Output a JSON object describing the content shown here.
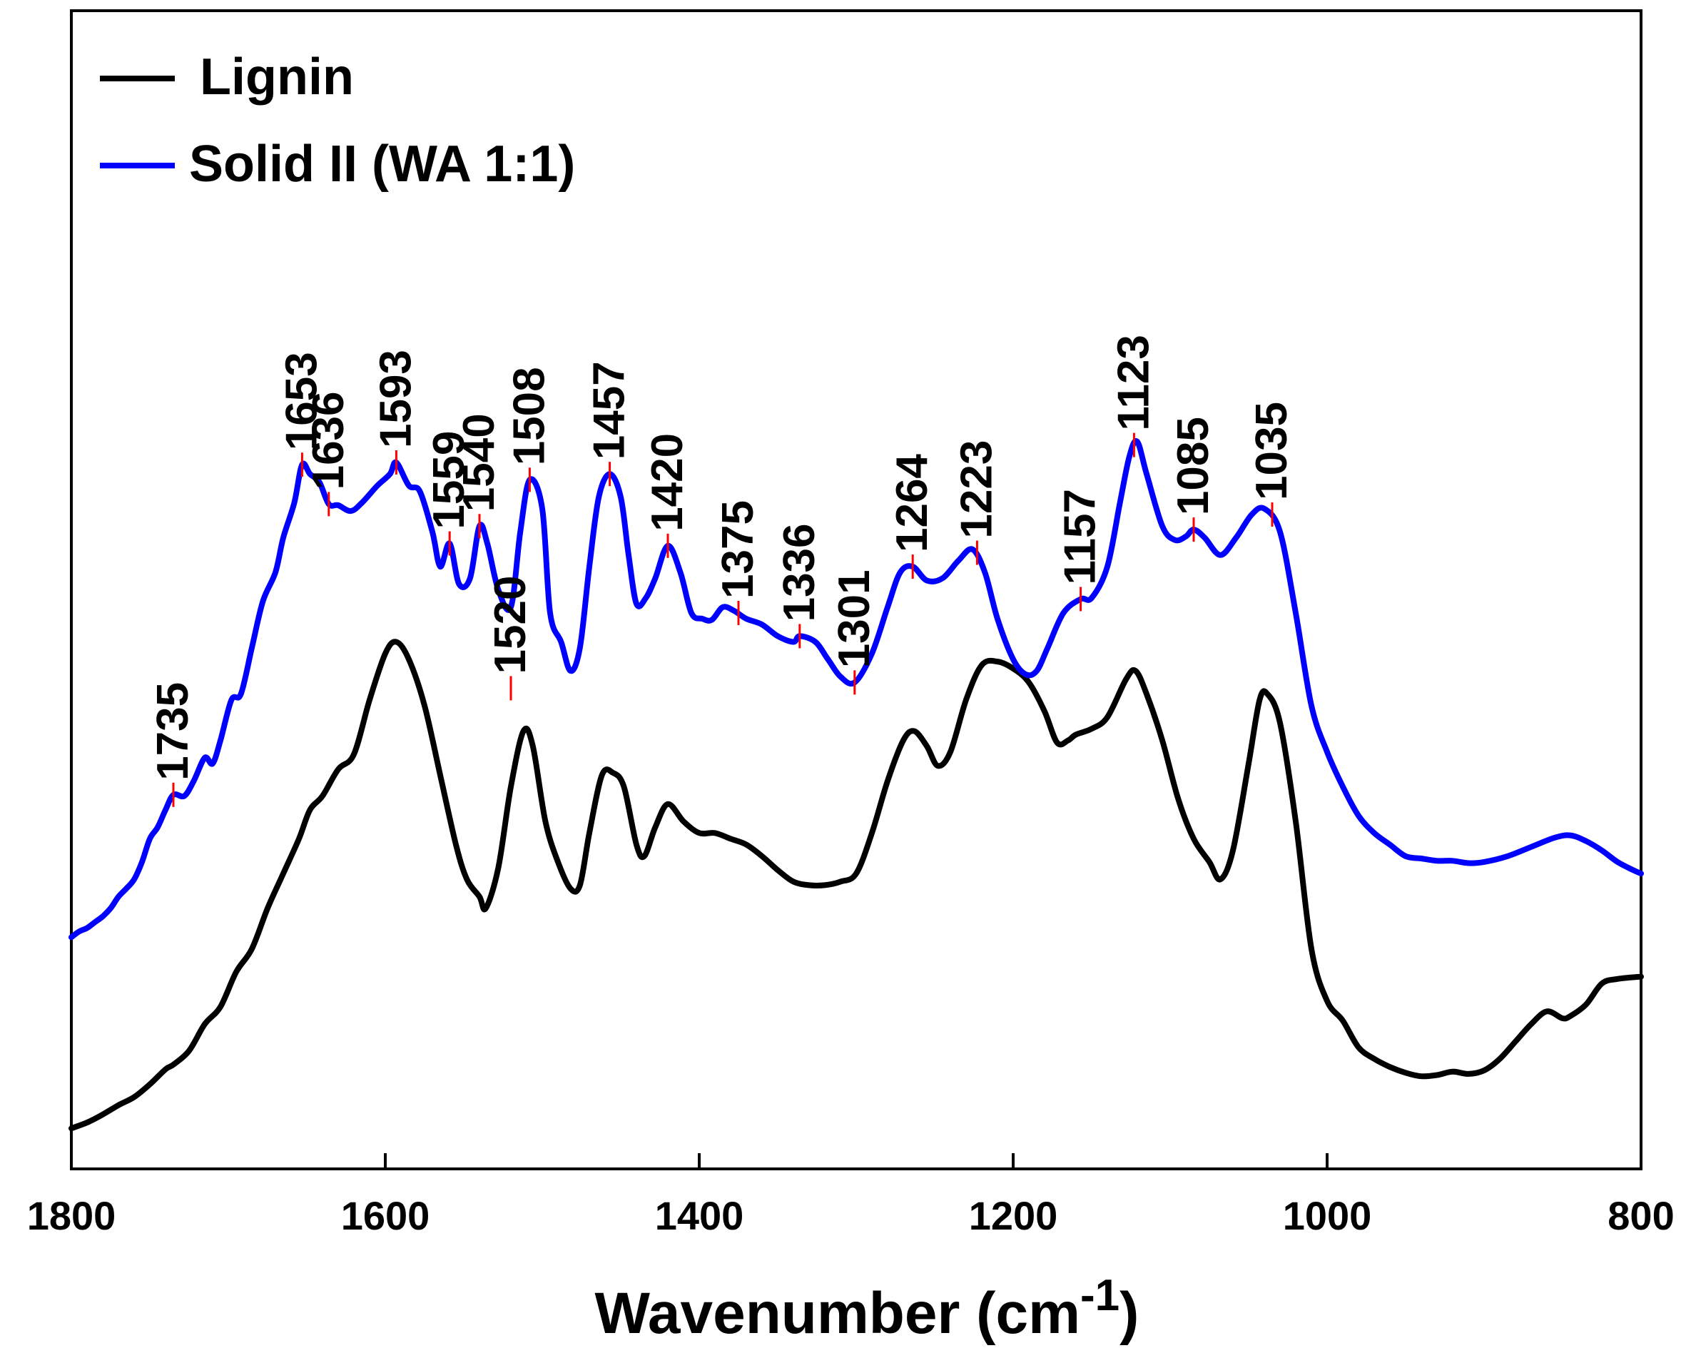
{
  "chart_data": {
    "type": "line",
    "title": "",
    "xlabel": "Wavenumber (cm",
    "xlabel_superscript": "-1",
    "xlabel_close": ")",
    "ylabel": "",
    "xlim": [
      1800,
      800
    ],
    "ylim": [
      0,
      100
    ],
    "x_ticks": [
      1800,
      1600,
      1400,
      1200,
      1000,
      800
    ],
    "x_tick_labels": [
      "1800",
      "1600",
      "1400",
      "1200",
      "1000",
      "800"
    ],
    "legend": {
      "position": "top-left"
    },
    "series": [
      {
        "name": "Lignin",
        "color": "#000000",
        "points": [
          [
            1800,
            3.5
          ],
          [
            1790,
            4.0
          ],
          [
            1780,
            4.7
          ],
          [
            1770,
            5.5
          ],
          [
            1760,
            6.2
          ],
          [
            1750,
            7.3
          ],
          [
            1740,
            8.6
          ],
          [
            1735,
            9.0
          ],
          [
            1725,
            10.2
          ],
          [
            1715,
            12.5
          ],
          [
            1705,
            14.0
          ],
          [
            1695,
            17.0
          ],
          [
            1685,
            19.0
          ],
          [
            1675,
            22.5
          ],
          [
            1665,
            25.5
          ],
          [
            1655,
            28.5
          ],
          [
            1648,
            31.0
          ],
          [
            1640,
            32.2
          ],
          [
            1630,
            34.5
          ],
          [
            1620,
            35.8
          ],
          [
            1610,
            40.5
          ],
          [
            1600,
            44.5
          ],
          [
            1593,
            45.5
          ],
          [
            1585,
            44.0
          ],
          [
            1575,
            40.0
          ],
          [
            1565,
            34.0
          ],
          [
            1555,
            28.0
          ],
          [
            1548,
            25.0
          ],
          [
            1540,
            23.5
          ],
          [
            1536,
            22.5
          ],
          [
            1528,
            26.0
          ],
          [
            1520,
            33.0
          ],
          [
            1512,
            37.8
          ],
          [
            1506,
            36.5
          ],
          [
            1498,
            30.0
          ],
          [
            1490,
            26.5
          ],
          [
            1482,
            24.2
          ],
          [
            1476,
            24.5
          ],
          [
            1470,
            29.0
          ],
          [
            1462,
            34.0
          ],
          [
            1455,
            34.2
          ],
          [
            1448,
            33.0
          ],
          [
            1440,
            28.0
          ],
          [
            1435,
            27.0
          ],
          [
            1428,
            29.5
          ],
          [
            1420,
            31.5
          ],
          [
            1410,
            30.0
          ],
          [
            1400,
            29.0
          ],
          [
            1390,
            29.0
          ],
          [
            1380,
            28.5
          ],
          [
            1370,
            28.0
          ],
          [
            1360,
            27.0
          ],
          [
            1350,
            25.8
          ],
          [
            1340,
            24.8
          ],
          [
            1330,
            24.5
          ],
          [
            1320,
            24.5
          ],
          [
            1310,
            24.8
          ],
          [
            1300,
            25.5
          ],
          [
            1290,
            29.0
          ],
          [
            1280,
            33.5
          ],
          [
            1270,
            37.0
          ],
          [
            1263,
            37.8
          ],
          [
            1255,
            36.5
          ],
          [
            1248,
            34.8
          ],
          [
            1240,
            36.0
          ],
          [
            1230,
            40.5
          ],
          [
            1220,
            43.5
          ],
          [
            1210,
            43.8
          ],
          [
            1200,
            43.2
          ],
          [
            1190,
            42.0
          ],
          [
            1180,
            39.5
          ],
          [
            1172,
            36.8
          ],
          [
            1165,
            37.0
          ],
          [
            1160,
            37.5
          ],
          [
            1150,
            38.0
          ],
          [
            1140,
            39.0
          ],
          [
            1128,
            42.3
          ],
          [
            1122,
            43.0
          ],
          [
            1115,
            41.0
          ],
          [
            1105,
            37.0
          ],
          [
            1095,
            32.0
          ],
          [
            1085,
            28.5
          ],
          [
            1075,
            26.5
          ],
          [
            1068,
            25.0
          ],
          [
            1060,
            27.5
          ],
          [
            1050,
            35.0
          ],
          [
            1043,
            40.5
          ],
          [
            1038,
            41.0
          ],
          [
            1030,
            38.5
          ],
          [
            1020,
            30.0
          ],
          [
            1010,
            19.0
          ],
          [
            1000,
            14.5
          ],
          [
            990,
            12.8
          ],
          [
            980,
            10.5
          ],
          [
            970,
            9.5
          ],
          [
            960,
            8.8
          ],
          [
            950,
            8.3
          ],
          [
            940,
            8.0
          ],
          [
            930,
            8.1
          ],
          [
            920,
            8.4
          ],
          [
            910,
            8.2
          ],
          [
            900,
            8.5
          ],
          [
            890,
            9.5
          ],
          [
            880,
            11.0
          ],
          [
            870,
            12.5
          ],
          [
            860,
            13.6
          ],
          [
            850,
            13.0
          ],
          [
            845,
            13.2
          ],
          [
            835,
            14.2
          ],
          [
            825,
            16.0
          ],
          [
            815,
            16.4
          ],
          [
            800,
            16.6
          ]
        ]
      },
      {
        "name": "Solid II (WA 1:1)",
        "color": "#0000ff",
        "points": [
          [
            1800,
            20.0
          ],
          [
            1795,
            20.5
          ],
          [
            1790,
            20.8
          ],
          [
            1785,
            21.3
          ],
          [
            1780,
            21.8
          ],
          [
            1775,
            22.5
          ],
          [
            1770,
            23.5
          ],
          [
            1765,
            24.2
          ],
          [
            1760,
            25.0
          ],
          [
            1755,
            26.5
          ],
          [
            1750,
            28.5
          ],
          [
            1745,
            29.5
          ],
          [
            1740,
            31.0
          ],
          [
            1735,
            32.3
          ],
          [
            1728,
            32.2
          ],
          [
            1722,
            33.5
          ],
          [
            1715,
            35.5
          ],
          [
            1710,
            35.0
          ],
          [
            1705,
            37.0
          ],
          [
            1698,
            40.5
          ],
          [
            1692,
            41.0
          ],
          [
            1685,
            45.0
          ],
          [
            1678,
            49.0
          ],
          [
            1670,
            51.5
          ],
          [
            1665,
            54.5
          ],
          [
            1658,
            57.5
          ],
          [
            1653,
            60.8
          ],
          [
            1648,
            60.0
          ],
          [
            1642,
            59.3
          ],
          [
            1636,
            57.4
          ],
          [
            1630,
            57.3
          ],
          [
            1622,
            56.8
          ],
          [
            1615,
            57.5
          ],
          [
            1605,
            59.0
          ],
          [
            1597,
            60.0
          ],
          [
            1593,
            61.0
          ],
          [
            1585,
            59.0
          ],
          [
            1578,
            58.5
          ],
          [
            1570,
            55.0
          ],
          [
            1565,
            52.0
          ],
          [
            1559,
            54.0
          ],
          [
            1553,
            50.5
          ],
          [
            1546,
            51.0
          ],
          [
            1540,
            55.5
          ],
          [
            1535,
            54.0
          ],
          [
            1528,
            50.0
          ],
          [
            1520,
            48.5
          ],
          [
            1514,
            55.0
          ],
          [
            1508,
            59.5
          ],
          [
            1500,
            57.0
          ],
          [
            1495,
            48.0
          ],
          [
            1488,
            45.5
          ],
          [
            1482,
            43.0
          ],
          [
            1476,
            45.0
          ],
          [
            1470,
            52.0
          ],
          [
            1464,
            58.0
          ],
          [
            1457,
            60.0
          ],
          [
            1450,
            58.0
          ],
          [
            1445,
            53.0
          ],
          [
            1440,
            48.8
          ],
          [
            1434,
            49.3
          ],
          [
            1428,
            51.0
          ],
          [
            1420,
            53.8
          ],
          [
            1412,
            51.5
          ],
          [
            1405,
            48.0
          ],
          [
            1398,
            47.5
          ],
          [
            1392,
            47.4
          ],
          [
            1385,
            48.5
          ],
          [
            1378,
            48.2
          ],
          [
            1370,
            47.5
          ],
          [
            1360,
            47.0
          ],
          [
            1350,
            46.0
          ],
          [
            1340,
            45.5
          ],
          [
            1336,
            46.0
          ],
          [
            1326,
            45.5
          ],
          [
            1318,
            44.0
          ],
          [
            1310,
            42.5
          ],
          [
            1301,
            42.0
          ],
          [
            1290,
            44.5
          ],
          [
            1280,
            48.5
          ],
          [
            1272,
            51.5
          ],
          [
            1264,
            52.0
          ],
          [
            1255,
            50.8
          ],
          [
            1245,
            51.0
          ],
          [
            1235,
            52.5
          ],
          [
            1226,
            53.5
          ],
          [
            1218,
            51.5
          ],
          [
            1210,
            47.5
          ],
          [
            1200,
            44.0
          ],
          [
            1192,
            42.7
          ],
          [
            1185,
            43.0
          ],
          [
            1178,
            45.0
          ],
          [
            1168,
            48.0
          ],
          [
            1157,
            49.2
          ],
          [
            1150,
            49.3
          ],
          [
            1140,
            52.0
          ],
          [
            1132,
            57.5
          ],
          [
            1126,
            61.5
          ],
          [
            1121,
            62.8
          ],
          [
            1115,
            60.0
          ],
          [
            1105,
            55.5
          ],
          [
            1097,
            54.3
          ],
          [
            1090,
            54.6
          ],
          [
            1085,
            55.2
          ],
          [
            1078,
            54.5
          ],
          [
            1068,
            53.0
          ],
          [
            1058,
            54.5
          ],
          [
            1048,
            56.5
          ],
          [
            1040,
            57.0
          ],
          [
            1030,
            55.0
          ],
          [
            1020,
            48.0
          ],
          [
            1010,
            40.0
          ],
          [
            1000,
            36.0
          ],
          [
            990,
            33.0
          ],
          [
            980,
            30.5
          ],
          [
            970,
            29.0
          ],
          [
            960,
            28.0
          ],
          [
            950,
            27.0
          ],
          [
            940,
            26.8
          ],
          [
            930,
            26.6
          ],
          [
            920,
            26.6
          ],
          [
            910,
            26.4
          ],
          [
            900,
            26.5
          ],
          [
            885,
            27.0
          ],
          [
            870,
            27.8
          ],
          [
            855,
            28.6
          ],
          [
            845,
            28.8
          ],
          [
            835,
            28.3
          ],
          [
            825,
            27.5
          ],
          [
            815,
            26.5
          ],
          [
            805,
            25.8
          ],
          [
            800,
            25.5
          ]
        ]
      }
    ],
    "annotations": [
      {
        "label": "1653",
        "x": 1653,
        "y": 60.8
      },
      {
        "label": "1636",
        "x": 1636,
        "y": 57.4
      },
      {
        "label": "1593",
        "x": 1593,
        "y": 61.0
      },
      {
        "label": "1559",
        "x": 1559,
        "y": 54.0
      },
      {
        "label": "1540",
        "x": 1540,
        "y": 55.5
      },
      {
        "label": "1520",
        "x": 1520,
        "y": 41.5
      },
      {
        "label": "1508",
        "x": 1508,
        "y": 59.5
      },
      {
        "label": "1457",
        "x": 1457,
        "y": 60.0
      },
      {
        "label": "1420",
        "x": 1420,
        "y": 53.8
      },
      {
        "label": "1375",
        "x": 1375,
        "y": 48.0
      },
      {
        "label": "1336",
        "x": 1336,
        "y": 46.0
      },
      {
        "label": "1301",
        "x": 1301,
        "y": 42.0
      },
      {
        "label": "1264",
        "x": 1264,
        "y": 52.0
      },
      {
        "label": "1223",
        "x": 1223,
        "y": 53.2
      },
      {
        "label": "1157",
        "x": 1157,
        "y": 49.2
      },
      {
        "label": "1123",
        "x": 1123,
        "y": 62.5
      },
      {
        "label": "1085",
        "x": 1085,
        "y": 55.2
      },
      {
        "label": "1035",
        "x": 1035,
        "y": 56.5
      },
      {
        "label": "1735",
        "x": 1735,
        "y": 32.3
      }
    ]
  }
}
